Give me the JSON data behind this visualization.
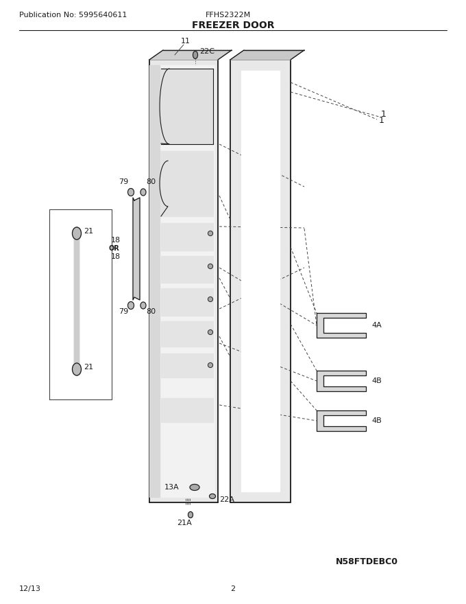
{
  "pub_no": "Publication No: 5995640611",
  "model": "FFHS2322M",
  "title": "FREEZER DOOR",
  "diagram_id": "N58FTDEBC0",
  "date": "12/13",
  "page": "2",
  "bg_color": "#ffffff",
  "line_color": "#1a1a1a"
}
